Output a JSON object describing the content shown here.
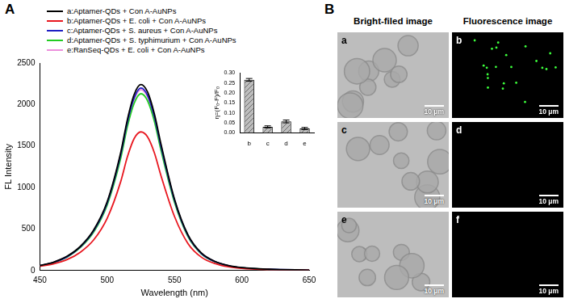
{
  "panel_labels": [
    "A",
    "B"
  ],
  "chart_data": [
    {
      "type": "line",
      "x_label": "Wavelength (nm)",
      "y_label": "FL Intensity",
      "x": [
        450,
        460,
        470,
        480,
        490,
        500,
        510,
        515,
        520,
        525,
        530,
        535,
        540,
        550,
        560,
        570,
        580,
        590,
        600,
        620,
        650
      ],
      "series": [
        {
          "name": "a:Aptamer-QDs + Con A-AuNPs",
          "color": "#000000",
          "values": [
            60,
            100,
            170,
            290,
            490,
            830,
            1420,
            1820,
            2120,
            2240,
            2150,
            1890,
            1520,
            860,
            430,
            210,
            110,
            60,
            35,
            15,
            5
          ]
        },
        {
          "name": "b:Aptamer-QDs + E. coli + Con A-AuNPs",
          "color": "#e8171f",
          "values": [
            50,
            80,
            130,
            220,
            370,
            630,
            1070,
            1370,
            1590,
            1670,
            1610,
            1420,
            1140,
            650,
            325,
            160,
            85,
            45,
            27,
            12,
            4
          ]
        },
        {
          "name": "c:Aptamer-QDs + S. aureus + Con A-AuNPs",
          "color": "#1f1fc4",
          "values": [
            58,
            98,
            165,
            285,
            480,
            815,
            1395,
            1790,
            2080,
            2200,
            2110,
            1855,
            1490,
            845,
            420,
            205,
            108,
            58,
            34,
            15,
            5
          ]
        },
        {
          "name": "d:Aptamer-QDs + S. typhimurium + Con A-AuNPs",
          "color": "#22cc22",
          "values": [
            56,
            95,
            160,
            276,
            465,
            790,
            1350,
            1735,
            2015,
            2130,
            2045,
            1800,
            1445,
            820,
            408,
            200,
            105,
            56,
            33,
            14,
            5
          ]
        },
        {
          "name": "e:RanSeq-QDs + E. coli + Con A-AuNPs",
          "color": "#ec8fdc",
          "values": [
            57,
            97,
            163,
            282,
            475,
            808,
            1380,
            1775,
            2060,
            2180,
            2090,
            1840,
            1478,
            838,
            417,
            203,
            107,
            57,
            33,
            14,
            5
          ]
        }
      ],
      "xlim": [
        450,
        650
      ],
      "xticks": [
        450,
        500,
        550,
        600,
        650
      ],
      "ylim": [
        0,
        2500
      ],
      "yticks": [
        0,
        500,
        1000,
        1500,
        2000,
        2500
      ],
      "grid": false,
      "legend": "top-left"
    },
    {
      "type": "bar",
      "y_label": "η=(F₀-F)/F₀",
      "categories": [
        "b",
        "c",
        "d",
        "e"
      ],
      "values": [
        0.265,
        0.03,
        0.057,
        0.022
      ],
      "errors": [
        0.007,
        0.005,
        0.007,
        0.005
      ],
      "color": "#bdbdbd",
      "ylim": [
        0,
        0.3
      ],
      "yticks": [
        {
          "value": 0,
          "label": "0.00"
        },
        {
          "value": 0.05,
          "label": "0.05"
        },
        {
          "value": 0.1,
          "label": "0.10"
        },
        {
          "value": 0.15,
          "label": "0.15"
        },
        {
          "value": 0.2,
          "label": "0.20"
        },
        {
          "value": 0.25,
          "label": "0.25"
        },
        {
          "value": 0.3,
          "label": "0.30"
        }
      ],
      "grid": false
    }
  ],
  "images": {
    "column_titles": [
      "Bright-filed image",
      "Fluorescence image"
    ],
    "panels": [
      {
        "label": "a",
        "kind": "bright-field",
        "scale_bar": "10 μm"
      },
      {
        "label": "b",
        "kind": "fluorescence-bright",
        "scale_bar": "10 μm"
      },
      {
        "label": "c",
        "kind": "bright-field",
        "scale_bar": "10 μm"
      },
      {
        "label": "d",
        "kind": "fluorescence-dark",
        "scale_bar": "10 μm"
      },
      {
        "label": "e",
        "kind": "bright-field",
        "scale_bar": "10 μm"
      },
      {
        "label": "f",
        "kind": "fluorescence-dark",
        "scale_bar": "10 μm"
      }
    ]
  }
}
